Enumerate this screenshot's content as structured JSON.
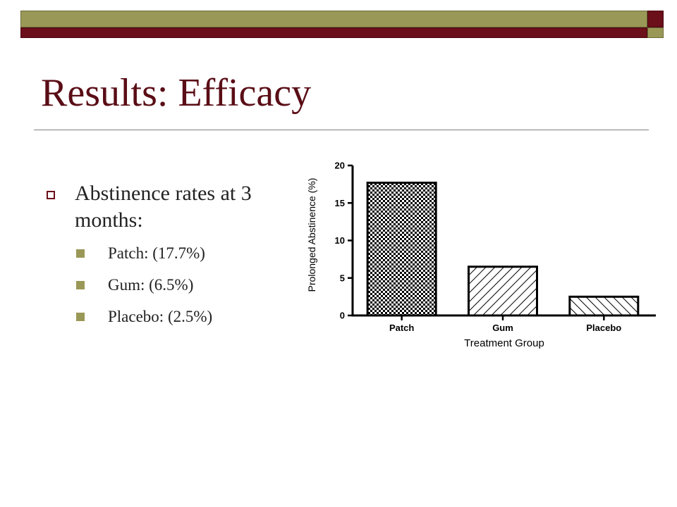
{
  "title": "Results:  Efficacy",
  "bullet": {
    "text": "Abstinence rates at 3 months:",
    "sub_items": [
      "Patch: (17.7%)",
      "Gum: (6.5%)",
      "Placebo: (2.5%)"
    ]
  },
  "colors": {
    "maroon": "#6b0f1a",
    "olive": "#9a9856",
    "title": "#5a0d16"
  },
  "chart_data": {
    "type": "bar",
    "categories": [
      "Patch",
      "Gum",
      "Placebo"
    ],
    "values": [
      17.7,
      6.5,
      2.5
    ],
    "patterns": [
      "checkerboard",
      "back-diagonal-hatch",
      "forward-diagonal-hatch"
    ],
    "xlabel": "Treatment Group",
    "ylabel": "Prolonged Abstinence (%)",
    "ylim": [
      0,
      20
    ],
    "yticks": [
      "0",
      "5",
      "10",
      "15",
      "20"
    ],
    "grid": false,
    "legend": "none"
  }
}
